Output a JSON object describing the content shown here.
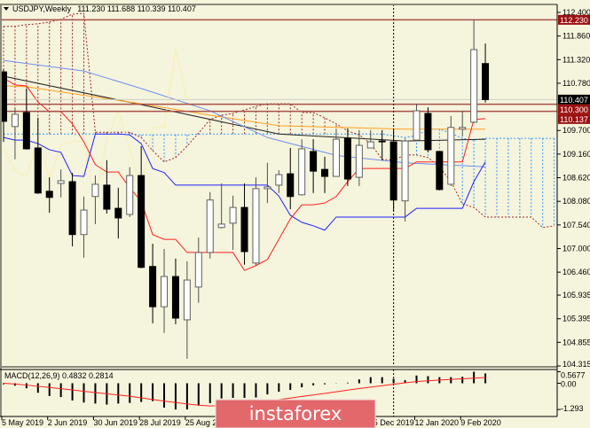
{
  "header": {
    "symbol_label": "USDJPY,Weekly",
    "ohlc_label": "111.230 111.688 110.339 110.407",
    "menu_icon": "triangle-down-icon"
  },
  "colors": {
    "background": "#f5f4dc",
    "bull_body": "#ffffff",
    "bear_body": "#000000",
    "tenkan": "#ff2020",
    "kijun": "#2020ff",
    "senkou_a": "#3399ff",
    "senkou_b": "#a02828",
    "chikou": "#f8f0b0",
    "ma_black": "#202020",
    "ma_orange": "#ffa020",
    "ma_lightblue": "#7090f0",
    "level_line": "#a8504c",
    "level_tag": "#9b1010",
    "price_tag": "#000000",
    "macd_hist": "#000000",
    "macd_signal": "#ff2020",
    "logo": "#e2686c"
  },
  "chart_data": {
    "type": "candlestick",
    "symbol": "USDJPY",
    "timeframe": "Weekly",
    "ylim": [
      104.315,
      112.4
    ],
    "grid": false,
    "candle_fields": [
      "date",
      "open",
      "high",
      "low",
      "close"
    ],
    "candles": [
      [
        "2019-05-05",
        111.04,
        111.1,
        109.44,
        109.91
      ],
      [
        "2019-05-12",
        109.79,
        110.21,
        109.04,
        110.07
      ],
      [
        "2019-05-19",
        110.11,
        110.66,
        109.26,
        109.28
      ],
      [
        "2019-05-26",
        109.3,
        109.99,
        108.25,
        108.27
      ],
      [
        "2019-06-02",
        108.31,
        108.63,
        107.82,
        108.17
      ],
      [
        "2019-06-09",
        108.49,
        108.81,
        108.17,
        108.55
      ],
      [
        "2019-06-16",
        108.53,
        108.73,
        107.05,
        107.32
      ],
      [
        "2019-06-23",
        107.32,
        108.19,
        106.79,
        107.88
      ],
      [
        "2019-06-30",
        108.19,
        108.67,
        107.56,
        108.47
      ],
      [
        "2019-07-07",
        108.45,
        109.02,
        107.8,
        107.9
      ],
      [
        "2019-07-14",
        107.92,
        108.39,
        107.23,
        107.7
      ],
      [
        "2019-07-21",
        107.78,
        108.86,
        107.72,
        108.67
      ],
      [
        "2019-07-28",
        108.67,
        109.34,
        106.55,
        106.57
      ],
      [
        "2019-08-04",
        106.59,
        107.11,
        105.29,
        105.67
      ],
      [
        "2019-08-11",
        105.67,
        106.99,
        105.07,
        106.36
      ],
      [
        "2019-08-18",
        106.36,
        106.77,
        105.27,
        105.41
      ],
      [
        "2019-08-25",
        105.37,
        106.71,
        104.48,
        106.28
      ],
      [
        "2019-09-01",
        106.12,
        107.25,
        105.76,
        106.91
      ],
      [
        "2019-09-08",
        106.91,
        108.29,
        106.77,
        108.11
      ],
      [
        "2019-09-15",
        107.48,
        108.49,
        107.46,
        107.56
      ],
      [
        "2019-09-22",
        107.58,
        108.21,
        106.97,
        107.94
      ],
      [
        "2019-09-29",
        107.94,
        108.49,
        106.63,
        106.93
      ],
      [
        "2019-10-06",
        106.67,
        108.63,
        106.61,
        108.37
      ],
      [
        "2019-10-13",
        108.37,
        108.96,
        108.04,
        108.41
      ],
      [
        "2019-10-20",
        108.45,
        108.79,
        108.27,
        108.69
      ],
      [
        "2019-10-27",
        108.71,
        109.3,
        107.9,
        108.19
      ],
      [
        "2019-11-03",
        108.23,
        109.5,
        108.21,
        109.28
      ],
      [
        "2019-11-10",
        109.22,
        109.5,
        108.27,
        108.77
      ],
      [
        "2019-11-17",
        108.81,
        109.1,
        108.27,
        108.65
      ],
      [
        "2019-11-24",
        108.65,
        109.71,
        108.65,
        109.5
      ],
      [
        "2019-12-01",
        109.52,
        109.75,
        108.43,
        108.59
      ],
      [
        "2019-12-08",
        108.63,
        109.71,
        108.43,
        109.36
      ],
      [
        "2019-12-15",
        109.3,
        109.71,
        109.3,
        109.44
      ],
      [
        "2019-12-22",
        109.46,
        109.71,
        109.02,
        109.45
      ],
      [
        "2019-12-29",
        109.44,
        109.71,
        107.86,
        108.11
      ],
      [
        "2020-01-05",
        108.09,
        109.5,
        107.62,
        109.46
      ],
      [
        "2020-01-12",
        109.48,
        110.31,
        109.46,
        110.15
      ],
      [
        "2020-01-19",
        110.09,
        110.23,
        109.2,
        109.26
      ],
      [
        "2020-01-26",
        109.22,
        109.22,
        108.33,
        108.35
      ],
      [
        "2020-02-02",
        108.47,
        110.03,
        108.43,
        109.77
      ],
      [
        "2020-02-09",
        109.73,
        110.15,
        109.56,
        109.77
      ],
      [
        "2020-02-16",
        109.89,
        112.23,
        109.87,
        111.55
      ],
      [
        "2020-02-23",
        111.23,
        111.688,
        110.339,
        110.407
      ]
    ],
    "ichimoku": {
      "tenkan": [
        110.9,
        110.74,
        110.72,
        110.35,
        110.13,
        110.13,
        109.85,
        109.44,
        108.92,
        108.75,
        108.75,
        108.39,
        108.08,
        107.32,
        107.21,
        107.21,
        106.91,
        106.91,
        106.91,
        106.91,
        106.91,
        106.5,
        106.61,
        106.75,
        107.21,
        107.68,
        108.0,
        108.0,
        108.04,
        108.19,
        108.53,
        108.83,
        108.83,
        108.83,
        108.83,
        108.83,
        108.98,
        108.98,
        108.98,
        108.98,
        108.98,
        109.95,
        109.97
      ],
      "kijun": [
        109.54,
        109.48,
        109.48,
        109.4,
        109.26,
        109.2,
        108.67,
        108.65,
        109.62,
        109.62,
        109.62,
        109.6,
        109.4,
        108.83,
        108.74,
        108.45,
        108.45,
        108.45,
        108.45,
        108.45,
        108.45,
        108.45,
        108.45,
        108.45,
        108.2,
        107.76,
        107.6,
        107.52,
        107.42,
        107.72,
        107.72,
        107.72,
        107.72,
        107.72,
        107.72,
        107.72,
        107.92,
        107.92,
        107.92,
        107.92,
        107.92,
        108.53,
        108.98
      ],
      "senkou_a": [
        109.62,
        109.62,
        109.62,
        109.62,
        109.62,
        109.62,
        109.62,
        109.62,
        109.62,
        109.62,
        109.62,
        109.62,
        109.6,
        109.6,
        109.6,
        109.6,
        109.6,
        109.62,
        109.62,
        109.62,
        109.62,
        109.62,
        109.62,
        109.62,
        109.62,
        109.62,
        109.62,
        109.62,
        109.62,
        109.62,
        109.62,
        109.62,
        109.62,
        109.62,
        109.58,
        109.54,
        109.58,
        109.73,
        109.73,
        109.64,
        109.52,
        109.48,
        109.52,
        109.52,
        109.52,
        109.52,
        109.52,
        109.52,
        109.52
      ],
      "senkou_b": [
        112.08,
        112.08,
        112.12,
        112.14,
        112.18,
        112.24,
        112.36,
        112.38,
        109.66,
        109.66,
        109.66,
        109.66,
        109.54,
        109.24,
        108.98,
        109.08,
        109.34,
        109.64,
        109.95,
        110.05,
        110.09,
        110.17,
        110.25,
        110.31,
        110.31,
        110.31,
        110.11,
        110.11,
        109.99,
        109.85,
        109.69,
        109.6,
        109.4,
        109.04,
        109.02,
        109.14,
        109.14,
        109.08,
        108.87,
        108.53,
        108.02,
        107.94,
        107.72,
        107.72,
        107.72,
        107.72,
        107.72,
        107.48,
        107.52
      ]
    },
    "moving_averages": [
      {
        "color_key": "ma_black",
        "points": [
          [
            "2019-05-05",
            110.94
          ],
          [
            "2019-07-28",
            110.29
          ],
          [
            "2019-10-20",
            109.62
          ],
          [
            "2020-01-05",
            109.46
          ],
          [
            "2020-02-23",
            109.5
          ]
        ]
      },
      {
        "color_key": "ma_orange",
        "points": [
          [
            "2019-05-05",
            110.72
          ],
          [
            "2019-05-19",
            110.7
          ],
          [
            "2019-07-28",
            110.31
          ],
          [
            "2019-09-08",
            110.05
          ],
          [
            "2019-10-20",
            109.81
          ],
          [
            "2020-01-05",
            109.73
          ],
          [
            "2020-02-23",
            109.73
          ]
        ]
      },
      {
        "color_key": "ma_lightblue",
        "points": [
          [
            "2019-05-05",
            111.3
          ],
          [
            "2019-06-23",
            111.06
          ],
          [
            "2019-07-28",
            110.66
          ],
          [
            "2019-09-08",
            110.15
          ],
          [
            "2019-10-13",
            109.54
          ],
          [
            "2019-11-24",
            109.13
          ],
          [
            "2020-01-05",
            108.96
          ],
          [
            "2020-02-23",
            108.87
          ]
        ]
      }
    ],
    "levels": [
      {
        "price": 112.23,
        "label": "112.230"
      },
      {
        "price": 110.3,
        "label": "110.300"
      },
      {
        "price": 110.137,
        "label": "110.137"
      }
    ],
    "current_price": {
      "price": 110.407,
      "label": "110.407"
    },
    "y_ticks": [
      "112.400",
      "111.860",
      "111.320",
      "110.780",
      "109.700",
      "109.160",
      "108.620",
      "108.080",
      "107.540",
      "107.000",
      "106.460",
      "105.935",
      "105.395",
      "104.855",
      "104.315"
    ],
    "x_ticks": [
      {
        "date": "2019-05-05",
        "label": "5 May 2019"
      },
      {
        "date": "2019-06-02",
        "label": "2 Jun 2019"
      },
      {
        "date": "2019-06-30",
        "label": "30 Jun 2019"
      },
      {
        "date": "2019-07-28",
        "label": "28 Jul 2019"
      },
      {
        "date": "2019-08-25",
        "label": "25 Aug 2019"
      },
      {
        "date": "2019-12-15",
        "label": "15 Dec 2019"
      },
      {
        "date": "2020-01-12",
        "label": "12 Jan 2020"
      },
      {
        "date": "2020-02-09",
        "label": "9 Feb 2020"
      }
    ],
    "period_separator_date": "2019-12-29",
    "macd": {
      "label": "MACD(12,26,9) 0.4832 0.2814",
      "ylim": [
        -1.293,
        0.5677
      ],
      "y_ticks": [
        "0.5677",
        "0.00",
        "-1.293"
      ],
      "main": [
        -0.05,
        -0.12,
        -0.25,
        -0.47,
        -0.63,
        -0.68,
        -0.85,
        -0.95,
        -1.0,
        -1.05,
        -1.0,
        -0.97,
        -0.92,
        -0.88,
        -1.2,
        -1.293,
        -1.29,
        -1.1,
        -0.98,
        -0.75,
        -0.72,
        -0.72,
        -0.7,
        -0.55,
        -0.42,
        -0.33,
        -0.2,
        -0.1,
        -0.05,
        0.01,
        0.03,
        0.19,
        0.3,
        0.3,
        0.22,
        0.15,
        0.38,
        0.35,
        0.3,
        0.3,
        0.32,
        0.5677,
        0.4832
      ],
      "signal": [
        0.0,
        -0.04,
        -0.09,
        -0.15,
        -0.21,
        -0.27,
        -0.33,
        -0.4,
        -0.46,
        -0.52,
        -0.58,
        -0.64,
        -0.72,
        -0.8,
        -0.88,
        -0.95,
        -1.02,
        -1.08,
        -1.12,
        -1.1,
        -1.05,
        -0.99,
        -0.93,
        -0.87,
        -0.8,
        -0.73,
        -0.65,
        -0.58,
        -0.5,
        -0.42,
        -0.34,
        -0.26,
        -0.19,
        -0.12,
        -0.05,
        0.02,
        0.08,
        0.12,
        0.16,
        0.19,
        0.22,
        0.25,
        0.2814
      ]
    }
  },
  "watermark": {
    "text": "instaforex"
  }
}
